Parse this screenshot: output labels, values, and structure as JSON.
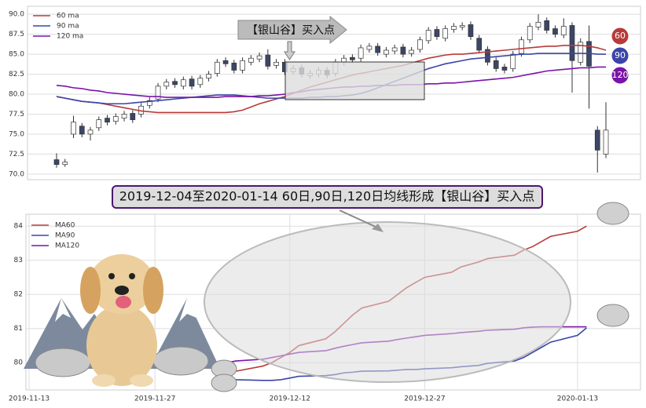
{
  "chart_data": [
    {
      "type": "candlestick",
      "open": [
        71.8,
        71.2,
        75.0,
        76.0,
        75.0,
        75.8,
        77.0,
        76.6,
        77.0,
        77.6,
        77.5,
        78.6,
        79.4,
        81.0,
        81.6,
        81.0,
        81.9,
        81.2,
        82.0,
        82.6,
        84.2,
        83.9,
        83.0,
        84.0,
        84.4,
        84.9,
        83.6,
        84.0,
        82.8,
        83.3,
        82.3,
        82.5,
        83.0,
        82.6,
        84.0,
        84.6,
        84.5,
        85.6,
        86.0,
        85.0,
        85.4,
        85.9,
        85.1,
        85.6,
        86.7,
        88.1,
        87.0,
        88.1,
        88.4,
        88.7,
        87.0,
        85.6,
        84.2,
        83.4,
        83.2,
        85.1,
        86.8,
        88.4,
        89.2,
        88.2,
        87.4,
        88.6,
        84.0,
        86.6,
        75.5,
        72.5
      ],
      "high": [
        72.6,
        71.9,
        77.3,
        76.4,
        75.9,
        77.2,
        77.4,
        77.6,
        77.9,
        78.0,
        78.9,
        79.6,
        81.4,
        81.9,
        82.0,
        82.2,
        82.3,
        82.4,
        82.9,
        84.4,
        84.6,
        84.3,
        84.6,
        84.9,
        85.2,
        85.6,
        84.4,
        84.4,
        83.6,
        83.7,
        83.0,
        83.4,
        83.4,
        84.4,
        84.9,
        85.0,
        86.2,
        86.4,
        86.4,
        85.9,
        86.2,
        86.3,
        85.9,
        87.2,
        88.4,
        88.5,
        88.6,
        88.9,
        89.0,
        89.1,
        87.4,
        86.0,
        84.6,
        83.8,
        85.4,
        87.2,
        88.9,
        90.0,
        89.6,
        88.6,
        89.5,
        89.0,
        87.0,
        88.6,
        76.0,
        79.0
      ],
      "low": [
        70.8,
        70.9,
        74.5,
        74.6,
        74.2,
        75.4,
        76.1,
        76.2,
        76.6,
        76.4,
        77.1,
        78.2,
        79.0,
        80.6,
        80.8,
        80.6,
        80.6,
        80.8,
        81.6,
        82.2,
        83.4,
        82.6,
        82.6,
        83.6,
        84.0,
        83.1,
        83.2,
        82.4,
        82.4,
        82.1,
        81.9,
        82.1,
        82.0,
        82.2,
        83.6,
        83.9,
        84.1,
        85.2,
        84.8,
        84.6,
        85.0,
        84.6,
        84.7,
        85.2,
        86.3,
        86.8,
        86.6,
        87.7,
        88.0,
        86.8,
        85.1,
        83.6,
        82.8,
        82.6,
        82.8,
        84.7,
        86.4,
        88.0,
        87.6,
        87.1,
        87.0,
        80.2,
        83.6,
        78.2,
        70.2,
        72.0
      ],
      "close": [
        71.2,
        71.5,
        76.5,
        75.0,
        75.5,
        76.8,
        76.5,
        77.2,
        77.5,
        76.8,
        78.5,
        79.2,
        81.0,
        81.5,
        81.2,
        81.8,
        81.0,
        82.0,
        82.5,
        84.0,
        83.8,
        83.0,
        84.2,
        84.5,
        84.8,
        83.5,
        84.0,
        82.8,
        83.2,
        82.5,
        82.6,
        83.0,
        82.4,
        84.0,
        84.5,
        84.3,
        85.8,
        86.0,
        85.2,
        85.5,
        85.8,
        85.0,
        85.5,
        86.8,
        88.0,
        87.2,
        88.2,
        88.5,
        88.6,
        87.2,
        85.5,
        84.0,
        83.2,
        83.0,
        85.0,
        86.8,
        88.5,
        89.0,
        88.0,
        87.5,
        88.5,
        84.2,
        86.5,
        83.5,
        73.0,
        75.5
      ],
      "up_color": "#ffffff",
      "down_color": "#3b4668",
      "ylim": [
        69.3,
        91.0
      ],
      "yticks": [
        {
          "value": 70,
          "label": "70.0"
        },
        {
          "value": 72.5,
          "label": "72.5"
        },
        {
          "value": 75,
          "label": "75.0"
        },
        {
          "value": 77.5,
          "label": "77.5"
        },
        {
          "value": 80,
          "label": "80.0"
        },
        {
          "value": 82.5,
          "label": "82.5"
        },
        {
          "value": 85,
          "label": "85.0"
        },
        {
          "value": 87.5,
          "label": "87.5"
        },
        {
          "value": 90,
          "label": "90.0"
        }
      ],
      "grid": true,
      "legend": "upper left",
      "annotation": "【银山谷】买入点",
      "series": [
        {
          "name": "60 ma",
          "color": "#b83a3a",
          "end_label": "60",
          "values": [
            79.7,
            79.5,
            79.3,
            79.1,
            79.0,
            78.9,
            78.7,
            78.5,
            78.3,
            78.1,
            77.9,
            77.8,
            77.7,
            77.7,
            77.7,
            77.7,
            77.7,
            77.7,
            77.7,
            77.7,
            77.7,
            77.8,
            78.0,
            78.4,
            78.8,
            79.1,
            79.4,
            79.7,
            80.1,
            80.5,
            80.9,
            81.2,
            81.5,
            81.8,
            82.1,
            82.4,
            82.6,
            82.8,
            83.0,
            83.2,
            83.4,
            83.6,
            83.9,
            84.2,
            84.5,
            84.7,
            84.9,
            85.0,
            85.0,
            85.1,
            85.2,
            85.3,
            85.4,
            85.5,
            85.6,
            85.7,
            85.8,
            85.9,
            86.0,
            86.0,
            86.1,
            86.1,
            86.1,
            86.0,
            85.8,
            85.5
          ]
        },
        {
          "name": "90 ma",
          "color": "#3b45a8",
          "end_label": "90",
          "values": [
            79.7,
            79.5,
            79.3,
            79.1,
            79.0,
            78.9,
            78.8,
            78.8,
            78.8,
            78.9,
            79.0,
            79.1,
            79.2,
            79.3,
            79.4,
            79.5,
            79.6,
            79.7,
            79.8,
            79.9,
            79.9,
            79.9,
            79.8,
            79.7,
            79.6,
            79.5,
            79.5,
            79.5,
            79.5,
            79.5,
            79.6,
            79.6,
            79.7,
            79.7,
            79.8,
            79.9,
            80.1,
            80.4,
            80.8,
            81.2,
            81.6,
            82.0,
            82.4,
            82.8,
            83.2,
            83.5,
            83.8,
            84.0,
            84.2,
            84.4,
            84.5,
            84.6,
            84.7,
            84.8,
            84.9,
            85.0,
            85.0,
            85.1,
            85.1,
            85.1,
            85.1,
            85.1,
            85.1,
            85.1,
            85.0,
            85.0
          ]
        },
        {
          "name": "120 ma",
          "color": "#7a14a8",
          "end_label": "120",
          "values": [
            81.1,
            81.0,
            80.8,
            80.7,
            80.5,
            80.4,
            80.2,
            80.1,
            80.0,
            79.9,
            79.8,
            79.7,
            79.7,
            79.6,
            79.6,
            79.6,
            79.6,
            79.6,
            79.6,
            79.6,
            79.7,
            79.7,
            79.7,
            79.7,
            79.8,
            79.8,
            79.9,
            80.0,
            80.2,
            80.3,
            80.5,
            80.6,
            80.7,
            80.8,
            80.9,
            80.9,
            81.0,
            81.0,
            81.1,
            81.1,
            81.1,
            81.2,
            81.2,
            81.2,
            81.3,
            81.3,
            81.4,
            81.4,
            81.5,
            81.6,
            81.7,
            81.8,
            81.9,
            82.0,
            82.1,
            82.3,
            82.5,
            82.7,
            82.9,
            83.0,
            83.1,
            83.2,
            83.3,
            83.3,
            83.4,
            83.4
          ]
        }
      ]
    },
    {
      "type": "line",
      "title": "2019-12-04至2020-01-14 60日,90日,120日均线形成【银山谷】买入点",
      "x": [
        "2019-12-04",
        "2019-12-05",
        "2019-12-06",
        "2019-12-09",
        "2019-12-10",
        "2019-12-11",
        "2019-12-12",
        "2019-12-13",
        "2019-12-16",
        "2019-12-17",
        "2019-12-18",
        "2019-12-19",
        "2019-12-20",
        "2019-12-23",
        "2019-12-24",
        "2019-12-25",
        "2019-12-26",
        "2019-12-27",
        "2019-12-30",
        "2019-12-31",
        "2020-01-02",
        "2020-01-03",
        "2020-01-06",
        "2020-01-07",
        "2020-01-08",
        "2020-01-09",
        "2020-01-10",
        "2020-01-13",
        "2020-01-14"
      ],
      "xlim": [
        "2019-11-13",
        "2020-01-20"
      ],
      "xticks": [
        "2019-11-13",
        "2019-11-27",
        "2019-12-12",
        "2019-12-27",
        "2020-01-13"
      ],
      "ylim": [
        79.2,
        84.35
      ],
      "yticks": [
        80,
        81,
        82,
        83,
        84
      ],
      "grid": true,
      "legend": "upper left",
      "series": [
        {
          "name": "MA60",
          "color": "#b83a3a",
          "values": [
            79.48,
            79.6,
            79.75,
            79.9,
            80.0,
            80.15,
            80.3,
            80.5,
            80.7,
            80.9,
            81.15,
            81.4,
            81.6,
            81.8,
            82.0,
            82.2,
            82.35,
            82.5,
            82.65,
            82.8,
            82.95,
            83.05,
            83.15,
            83.3,
            83.4,
            83.55,
            83.7,
            83.85,
            84.0
          ]
        },
        {
          "name": "MA90",
          "color": "#3b45a8",
          "values": [
            79.6,
            79.55,
            79.5,
            79.48,
            79.48,
            79.5,
            79.55,
            79.6,
            79.62,
            79.65,
            79.7,
            79.72,
            79.75,
            79.76,
            79.78,
            79.8,
            79.8,
            79.82,
            79.85,
            79.88,
            79.92,
            79.98,
            80.05,
            80.15,
            80.3,
            80.45,
            80.6,
            80.8,
            81.02
          ]
        },
        {
          "name": "MA120",
          "color": "#7a14a8",
          "values": [
            79.92,
            80.0,
            80.05,
            80.1,
            80.15,
            80.2,
            80.25,
            80.3,
            80.35,
            80.42,
            80.48,
            80.53,
            80.58,
            80.63,
            80.68,
            80.72,
            80.76,
            80.8,
            80.85,
            80.88,
            80.92,
            80.95,
            80.98,
            81.02,
            81.04,
            81.05,
            81.05,
            81.05,
            81.05
          ]
        }
      ]
    }
  ]
}
